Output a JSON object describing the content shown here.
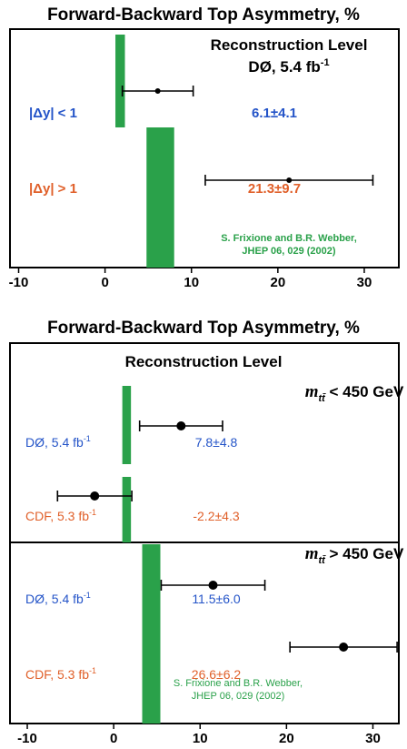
{
  "colors": {
    "theory": "#2aa14a",
    "blue": "#2454c8",
    "orange": "#e0602a",
    "frame": "#000000"
  },
  "chart_data": [
    {
      "type": "errorbar",
      "title": "Forward-Backward Top Asymmetry, %",
      "heading": "Reconstruction Level",
      "experiment_label": "DØ, 5.4 fb",
      "experiment_sup": "-1",
      "xlim": [
        -11,
        34
      ],
      "xticks": [
        -10,
        0,
        10,
        20,
        30
      ],
      "theory_label": [
        "S. Frixione and B.R. Webber,",
        "JHEP 06, 029 (2002)"
      ],
      "rows": [
        {
          "label": "|Δy| < 1",
          "value": 6.1,
          "err": 4.1,
          "text": "6.1±4.1",
          "color": "blue",
          "theory": [
            1.2,
            2.3
          ]
        },
        {
          "label": "|Δy| > 1",
          "value": 21.3,
          "err": 9.7,
          "text": "21.3±9.7",
          "color": "orange",
          "theory": [
            4.8,
            8.0
          ]
        }
      ]
    },
    {
      "type": "errorbar",
      "title": "Forward-Backward Top Asymmetry, %",
      "heading": "Reconstruction Level",
      "xlim": [
        -12,
        33
      ],
      "xticks": [
        -10,
        0,
        10,
        20,
        30
      ],
      "theory_label": [
        "S. Frixione and B.R. Webber,",
        "JHEP 06, 029 (2002)"
      ],
      "panels": [
        {
          "cut_label": "m",
          "cut_sub": "tt̄",
          "cut_text": "< 450 GeV",
          "rows": [
            {
              "label": "DØ, 5.4 fb",
              "sup": "-1",
              "value": 7.8,
              "err": 4.8,
              "text": "7.8±4.8",
              "color": "blue",
              "theory": [
                1.0,
                2.0
              ]
            },
            {
              "label": "CDF, 5.3 fb",
              "sup": "-1",
              "value": -2.2,
              "err": 4.3,
              "text": "-2.2±4.3",
              "color": "orange",
              "theory": [
                1.0,
                2.0
              ]
            }
          ]
        },
        {
          "cut_label": "m",
          "cut_sub": "tt̄",
          "cut_text": "> 450 GeV",
          "rows": [
            {
              "label": "DØ, 5.4 fb",
              "sup": "-1",
              "value": 11.5,
              "err": 6.0,
              "text": "11.5±6.0",
              "color": "blue",
              "theory": [
                3.3,
                5.4
              ]
            },
            {
              "label": "CDF, 5.3 fb",
              "sup": "-1",
              "value": 26.6,
              "err": 6.2,
              "text": "26.6±6.2",
              "color": "orange",
              "theory": [
                3.3,
                5.4
              ]
            }
          ]
        }
      ]
    }
  ]
}
